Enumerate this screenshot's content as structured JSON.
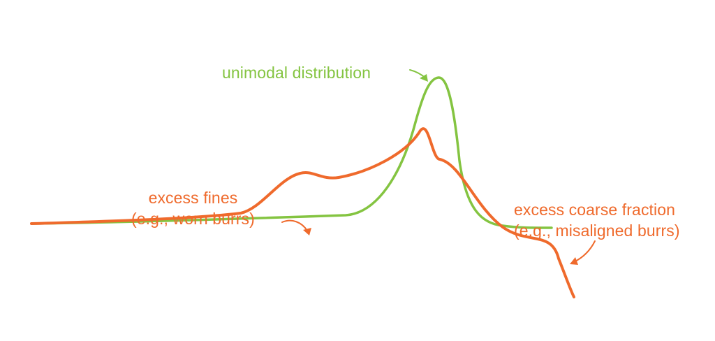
{
  "colors": {
    "green": "#84c441",
    "orange": "#ef6a2c",
    "background": "#ffffff"
  },
  "labels": {
    "unimodal": "unimodal distribution",
    "fines_line1": "excess fines",
    "fines_line2": "(e.g., worn burrs)",
    "coarse_line1": "excess coarse fraction",
    "coarse_line2": "(e.g., misaligned burrs)"
  },
  "curves": [
    {
      "key": "unimodal",
      "color_key": "green"
    },
    {
      "key": "bimodal_with_tails",
      "color_key": "orange"
    }
  ]
}
